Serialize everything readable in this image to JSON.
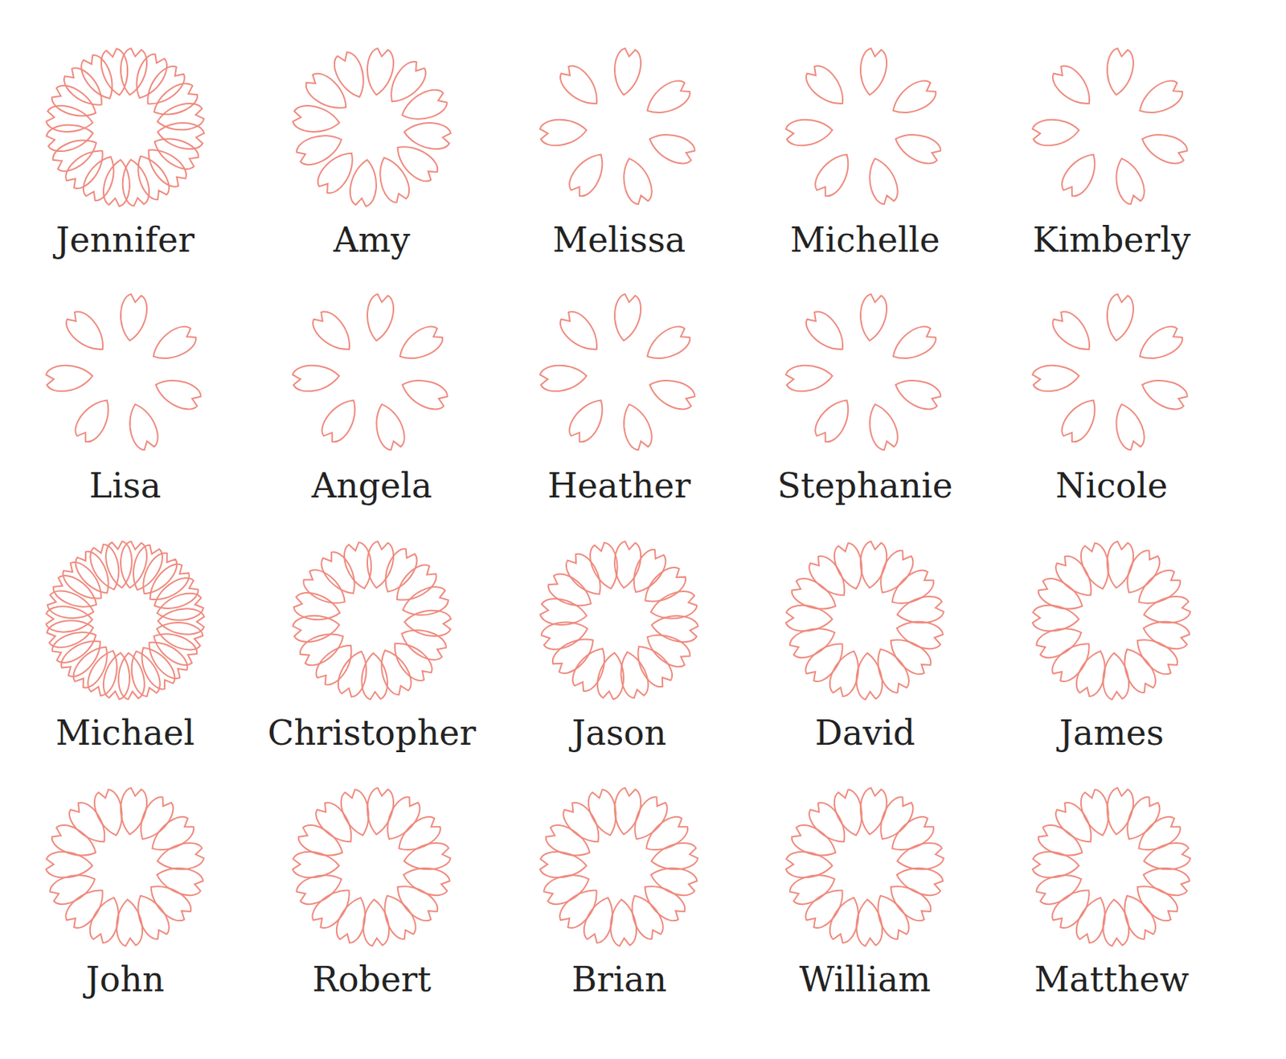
{
  "chart_data": {
    "type": "pictograph",
    "categories": [
      "Jennifer",
      "Amy",
      "Melissa",
      "Michelle",
      "Kimberly",
      "Lisa",
      "Angela",
      "Heather",
      "Stephanie",
      "Nicole",
      "Michael",
      "Christopher",
      "Jason",
      "David",
      "James",
      "John",
      "Robert",
      "Brian",
      "William",
      "Matthew"
    ],
    "values": [
      20,
      12,
      7,
      7,
      7,
      7,
      7,
      7,
      7,
      7,
      26,
      17,
      16,
      15,
      15,
      15,
      15,
      15,
      15,
      15
    ],
    "color": "#ef8a7e"
  }
}
